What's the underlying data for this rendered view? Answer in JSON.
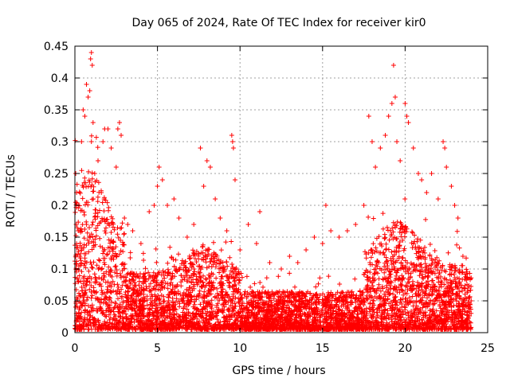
{
  "chart_data": {
    "type": "scatter",
    "title": "Day 065 of 2024, Rate Of TEC Index for receiver kir0",
    "xlabel": "GPS time / hours",
    "ylabel": "ROTI / TECUs",
    "xlim": [
      0,
      25
    ],
    "ylim": [
      0,
      0.45
    ],
    "xticks": [
      "0",
      "5",
      "10",
      "15",
      "20",
      "25"
    ],
    "yticks": [
      "0",
      "0.05",
      "0.1",
      "0.15",
      "0.2",
      "0.25",
      "0.3",
      "0.35",
      "0.4",
      "0.45"
    ],
    "grid": true,
    "marker": "+",
    "color": "#ff0000",
    "series": [
      {
        "values": [
          [
            0.05,
            0.25
          ],
          [
            0.1,
            0.22
          ],
          [
            0.2,
            0.16
          ],
          [
            0.3,
            0.12
          ],
          [
            0.4,
            0.3
          ],
          [
            0.5,
            0.35
          ],
          [
            0.6,
            0.34
          ],
          [
            0.7,
            0.39
          ],
          [
            0.8,
            0.37
          ],
          [
            0.9,
            0.38
          ],
          [
            0.95,
            0.43
          ],
          [
            1.0,
            0.44
          ],
          [
            1.05,
            0.42
          ],
          [
            1.0,
            0.3
          ],
          [
            1.1,
            0.33
          ],
          [
            1.2,
            0.25
          ],
          [
            1.4,
            0.27
          ],
          [
            1.6,
            0.22
          ],
          [
            1.7,
            0.3
          ],
          [
            1.8,
            0.32
          ],
          [
            2.0,
            0.32
          ],
          [
            2.2,
            0.29
          ],
          [
            2.5,
            0.26
          ],
          [
            2.6,
            0.32
          ],
          [
            2.7,
            0.33
          ],
          [
            2.8,
            0.31
          ],
          [
            3.0,
            0.18
          ],
          [
            3.2,
            0.17
          ],
          [
            3.5,
            0.16
          ],
          [
            4.0,
            0.14
          ],
          [
            4.5,
            0.19
          ],
          [
            4.8,
            0.2
          ],
          [
            5.0,
            0.23
          ],
          [
            5.1,
            0.26
          ],
          [
            5.3,
            0.24
          ],
          [
            5.6,
            0.2
          ],
          [
            6.0,
            0.21
          ],
          [
            6.3,
            0.18
          ],
          [
            6.8,
            0.15
          ],
          [
            7.2,
            0.17
          ],
          [
            7.6,
            0.29
          ],
          [
            7.8,
            0.23
          ],
          [
            8.0,
            0.27
          ],
          [
            8.2,
            0.26
          ],
          [
            8.5,
            0.21
          ],
          [
            8.8,
            0.18
          ],
          [
            9.2,
            0.16
          ],
          [
            9.5,
            0.31
          ],
          [
            9.55,
            0.3
          ],
          [
            9.6,
            0.29
          ],
          [
            9.7,
            0.24
          ],
          [
            10.0,
            0.13
          ],
          [
            10.5,
            0.17
          ],
          [
            11.0,
            0.14
          ],
          [
            11.2,
            0.19
          ],
          [
            11.8,
            0.11
          ],
          [
            12.5,
            0.1
          ],
          [
            13.0,
            0.12
          ],
          [
            13.5,
            0.11
          ],
          [
            14.0,
            0.13
          ],
          [
            14.5,
            0.15
          ],
          [
            15.0,
            0.14
          ],
          [
            15.2,
            0.2
          ],
          [
            15.5,
            0.16
          ],
          [
            16.0,
            0.15
          ],
          [
            16.5,
            0.16
          ],
          [
            17.0,
            0.17
          ],
          [
            17.5,
            0.2
          ],
          [
            17.8,
            0.34
          ],
          [
            18.0,
            0.3
          ],
          [
            18.2,
            0.26
          ],
          [
            18.5,
            0.29
          ],
          [
            18.8,
            0.31
          ],
          [
            19.0,
            0.34
          ],
          [
            19.2,
            0.36
          ],
          [
            19.3,
            0.42
          ],
          [
            19.4,
            0.37
          ],
          [
            19.5,
            0.3
          ],
          [
            19.7,
            0.27
          ],
          [
            20.0,
            0.36
          ],
          [
            20.1,
            0.34
          ],
          [
            20.2,
            0.33
          ],
          [
            20.5,
            0.29
          ],
          [
            20.8,
            0.25
          ],
          [
            21.0,
            0.24
          ],
          [
            21.3,
            0.22
          ],
          [
            21.6,
            0.25
          ],
          [
            22.0,
            0.21
          ],
          [
            22.3,
            0.3
          ],
          [
            22.4,
            0.29
          ],
          [
            22.5,
            0.26
          ],
          [
            22.8,
            0.23
          ],
          [
            23.0,
            0.2
          ],
          [
            23.2,
            0.18
          ],
          [
            23.5,
            0.12
          ],
          [
            23.8,
            0.07
          ],
          [
            24.0,
            0.05
          ]
        ]
      }
    ]
  }
}
